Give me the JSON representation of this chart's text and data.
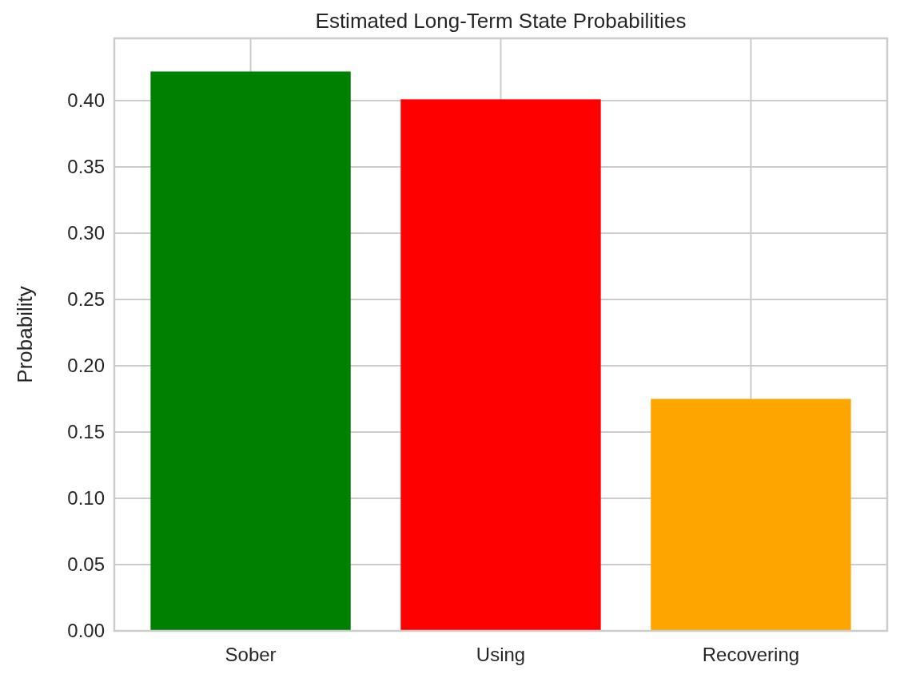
{
  "chart_data": {
    "type": "bar",
    "title": "Estimated Long-Term State Probabilities",
    "ylabel": "Probability",
    "categories": [
      "Sober",
      "Using",
      "Recovering"
    ],
    "values": [
      0.422,
      0.401,
      0.175
    ],
    "colors": [
      "#008000",
      "#ff0000",
      "#ffa500"
    ],
    "ylim": [
      0,
      0.447
    ],
    "yticks": [
      {
        "value": 0,
        "label": "0.00"
      },
      {
        "value": 0.05,
        "label": "0.05"
      },
      {
        "value": 0.1,
        "label": "0.10"
      },
      {
        "value": 0.15,
        "label": "0.15"
      },
      {
        "value": 0.2,
        "label": "0.20"
      },
      {
        "value": 0.25,
        "label": "0.25"
      },
      {
        "value": 0.3,
        "label": "0.30"
      },
      {
        "value": 0.35,
        "label": "0.35"
      },
      {
        "value": 0.4,
        "label": "0.40"
      }
    ],
    "grid": true
  }
}
